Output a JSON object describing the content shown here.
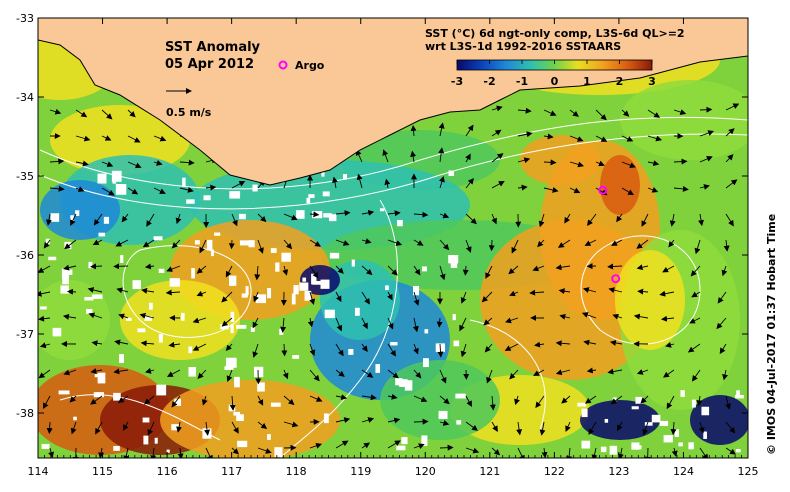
{
  "map": {
    "title": "SST Anomaly",
    "date": "05 Apr 2012",
    "argo_label": "Argo",
    "velocity_label": "0.5 m/s",
    "product_line1": "SST (°C) 6d ngt-only comp, L3S-6d QL>=2",
    "product_line2": "wrt L3S-1d 1992-2016 SSTAARS",
    "credit": "© IMOS 04-Jul-2017 01:37 Hobart Time",
    "colorbar_ticks": [
      "-3",
      "-2",
      "-1",
      "0",
      "1",
      "2",
      "3"
    ],
    "colorbar_range": [
      -3,
      3
    ],
    "lon_ticks": [
      "114",
      "115",
      "116",
      "117",
      "118",
      "119",
      "120",
      "121",
      "122",
      "123",
      "124",
      "125"
    ],
    "lat_ticks": [
      "-33",
      "-34",
      "-35",
      "-36",
      "-37",
      "-38"
    ],
    "lon_range": [
      114,
      125
    ],
    "lat_range": [
      -38.5,
      -33
    ],
    "argo_floats": [
      {
        "lon": 122.75,
        "lat": -35.18
      },
      {
        "lon": 122.95,
        "lat": -36.3
      }
    ],
    "colors": {
      "land": "#f9c896",
      "coast": "#000000",
      "argo": "#ff00ff",
      "contour": "#ffffff",
      "colormap": [
        "#08086b",
        "#0a3fb8",
        "#1e88d8",
        "#2fc0b0",
        "#4fc85a",
        "#8fdc3c",
        "#f0e020",
        "#f2a020",
        "#d85a10",
        "#8a1a08"
      ]
    }
  }
}
